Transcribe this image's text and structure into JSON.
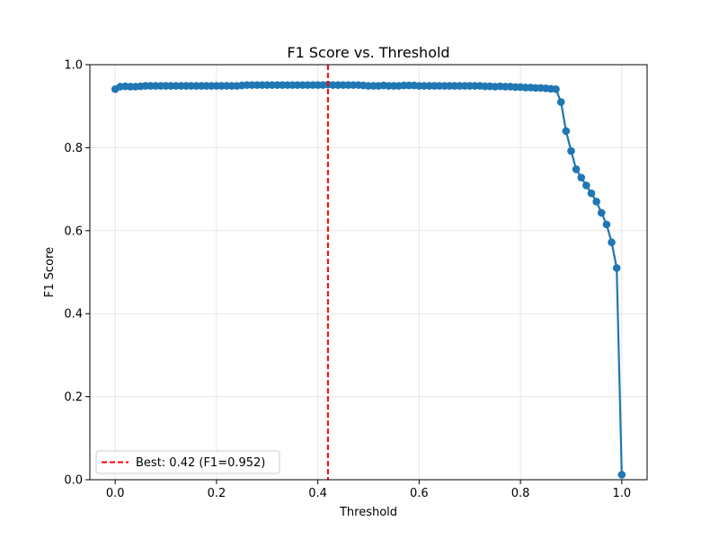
{
  "chart_data": {
    "type": "line",
    "title": "F1 Score vs. Threshold",
    "xlabel": "Threshold",
    "ylabel": "F1 Score",
    "xlim": [
      -0.05,
      1.05
    ],
    "ylim": [
      0.0,
      1.0
    ],
    "xticks": [
      0.0,
      0.2,
      0.4,
      0.6,
      0.8,
      1.0
    ],
    "xtick_labels": [
      "0.0",
      "0.2",
      "0.4",
      "0.6",
      "0.8",
      "1.0"
    ],
    "yticks": [
      0.0,
      0.2,
      0.4,
      0.6,
      0.8,
      1.0
    ],
    "ytick_labels": [
      "0.0",
      "0.2",
      "0.4",
      "0.6",
      "0.8",
      "1.0"
    ],
    "grid": true,
    "legend_position": "lower-left",
    "series": [
      {
        "color": "#1f77b4",
        "marker": "circle",
        "x": [
          0.0,
          0.01,
          0.02,
          0.03,
          0.04,
          0.05,
          0.06,
          0.07,
          0.08,
          0.09,
          0.1,
          0.11,
          0.12,
          0.13,
          0.14,
          0.15,
          0.16,
          0.17,
          0.18,
          0.19,
          0.2,
          0.21,
          0.22,
          0.23,
          0.24,
          0.25,
          0.26,
          0.27,
          0.28,
          0.29,
          0.3,
          0.31,
          0.32,
          0.33,
          0.34,
          0.35,
          0.36,
          0.37,
          0.38,
          0.39,
          0.4,
          0.41,
          0.42,
          0.43,
          0.44,
          0.45,
          0.46,
          0.47,
          0.48,
          0.49,
          0.5,
          0.51,
          0.52,
          0.53,
          0.54,
          0.55,
          0.56,
          0.57,
          0.58,
          0.59,
          0.6,
          0.61,
          0.62,
          0.63,
          0.64,
          0.65,
          0.66,
          0.67,
          0.68,
          0.69,
          0.7,
          0.71,
          0.72,
          0.73,
          0.74,
          0.75,
          0.76,
          0.77,
          0.78,
          0.79,
          0.8,
          0.81,
          0.82,
          0.83,
          0.84,
          0.85,
          0.86,
          0.87,
          0.88,
          0.89,
          0.9,
          0.91,
          0.92,
          0.93,
          0.94,
          0.95,
          0.96,
          0.97,
          0.98,
          0.99,
          1.0
        ],
        "y": [
          0.941,
          0.947,
          0.948,
          0.947,
          0.947,
          0.948,
          0.949,
          0.949,
          0.949,
          0.949,
          0.949,
          0.949,
          0.949,
          0.949,
          0.949,
          0.949,
          0.949,
          0.949,
          0.949,
          0.949,
          0.949,
          0.949,
          0.949,
          0.949,
          0.949,
          0.95,
          0.951,
          0.951,
          0.951,
          0.951,
          0.951,
          0.951,
          0.951,
          0.951,
          0.951,
          0.951,
          0.951,
          0.951,
          0.951,
          0.951,
          0.951,
          0.951,
          0.952,
          0.951,
          0.951,
          0.951,
          0.951,
          0.951,
          0.951,
          0.95,
          0.949,
          0.949,
          0.949,
          0.95,
          0.949,
          0.949,
          0.949,
          0.95,
          0.95,
          0.95,
          0.949,
          0.949,
          0.949,
          0.949,
          0.949,
          0.949,
          0.949,
          0.949,
          0.949,
          0.949,
          0.949,
          0.949,
          0.949,
          0.948,
          0.948,
          0.947,
          0.948,
          0.947,
          0.947,
          0.946,
          0.946,
          0.945,
          0.945,
          0.944,
          0.944,
          0.943,
          0.942,
          0.941,
          0.91,
          0.84,
          0.792,
          0.748,
          0.728,
          0.709,
          0.69,
          0.67,
          0.643,
          0.615,
          0.572,
          0.51,
          0.012
        ]
      }
    ],
    "reference_line": {
      "orientation": "vertical",
      "x": 0.42,
      "color": "#ff0000",
      "style": "dashed",
      "label": "Best: 0.42 (F1=0.952)"
    }
  }
}
